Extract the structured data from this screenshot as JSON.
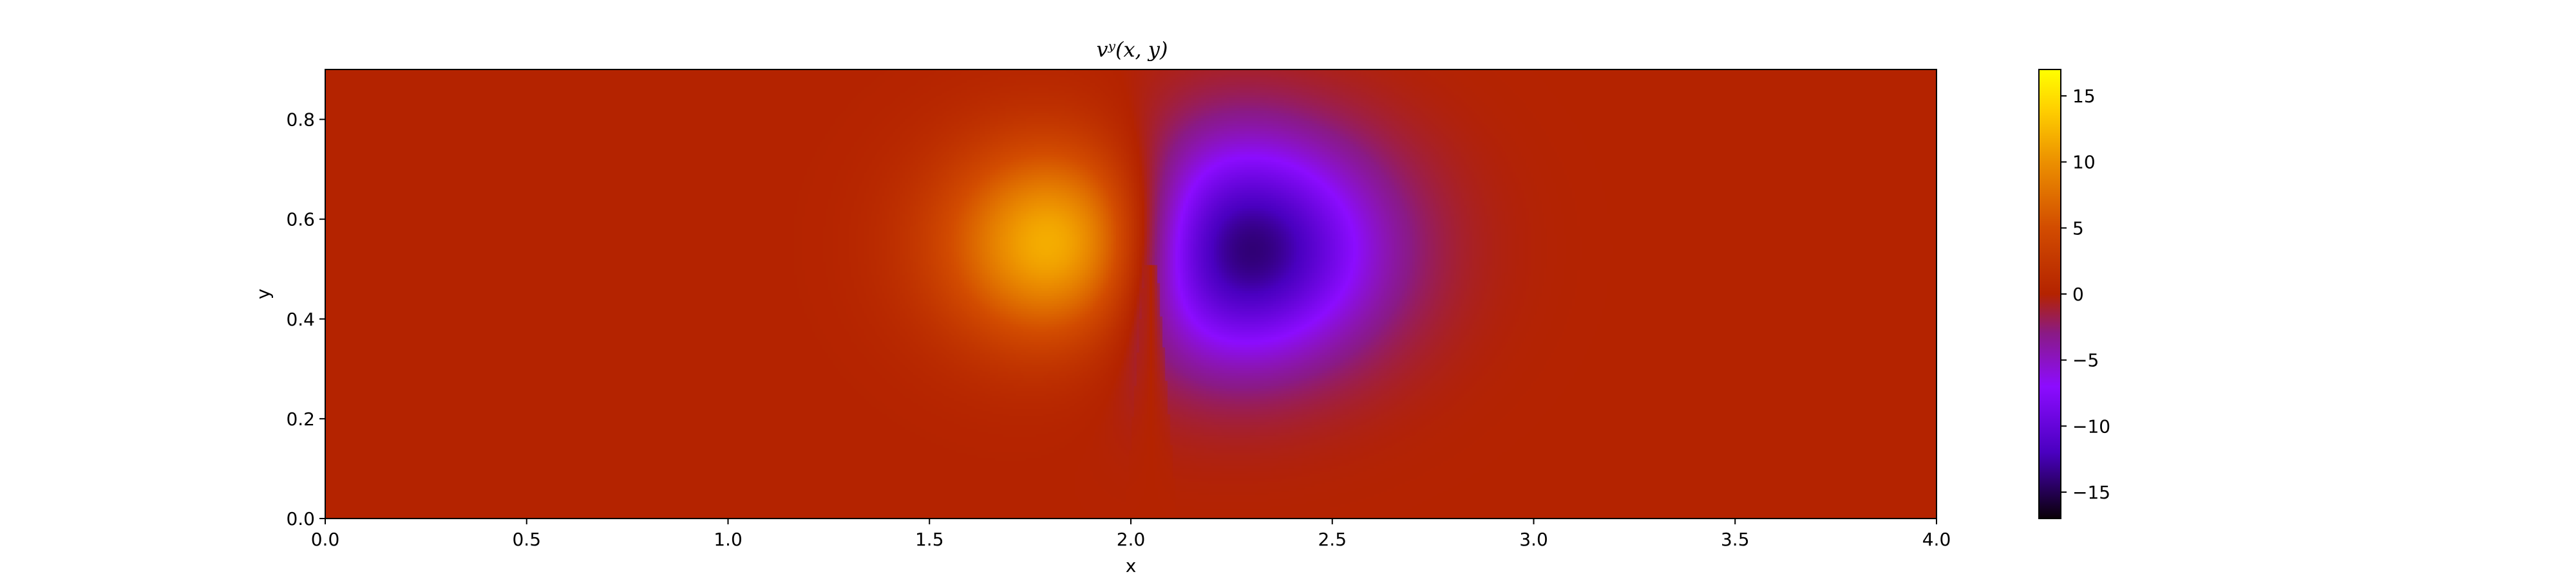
{
  "chart_data": {
    "type": "heatmap",
    "title": "vʸ(x, y)",
    "xlabel": "x",
    "ylabel": "y",
    "xlim": [
      0,
      4
    ],
    "ylim": [
      0,
      0.9
    ],
    "x_ticks": [
      "0.0",
      "0.5",
      "1.0",
      "1.5",
      "2.0",
      "2.5",
      "3.0",
      "3.5",
      "4.0"
    ],
    "y_ticks": [
      "0.0",
      "0.2",
      "0.4",
      "0.6",
      "0.8"
    ],
    "colorbar": {
      "min": -17,
      "max": 17,
      "ticks": [
        "15",
        "10",
        "5",
        "0",
        "−5",
        "−10",
        "−15"
      ],
      "colormap": "gnuplot",
      "colormap_stops": [
        {
          "value": -17,
          "color": "#0a0008"
        },
        {
          "value": -12,
          "color": "#4a00c0"
        },
        {
          "value": -7,
          "color": "#8c0cff"
        },
        {
          "value": -3,
          "color": "#8a1a86"
        },
        {
          "value": 0,
          "color": "#b42300"
        },
        {
          "value": 5,
          "color": "#d24c00"
        },
        {
          "value": 10,
          "color": "#ec9000"
        },
        {
          "value": 14,
          "color": "#ffd000"
        },
        {
          "value": 17,
          "color": "#ffff00"
        }
      ]
    },
    "features": [
      {
        "kind": "positive-lobe",
        "x": 1.87,
        "y": 0.55,
        "peak": 17,
        "spread_x": 0.3,
        "spread_y": 0.2
      },
      {
        "kind": "negative-lobe",
        "x": 2.22,
        "y": 0.54,
        "peak": -17,
        "spread_x": 0.36,
        "spread_y": 0.22
      },
      {
        "kind": "notch",
        "x": 2.05,
        "y": 0.49,
        "y_range": [
          0.0,
          0.51
        ]
      }
    ],
    "background_value": 0,
    "grid": false
  }
}
